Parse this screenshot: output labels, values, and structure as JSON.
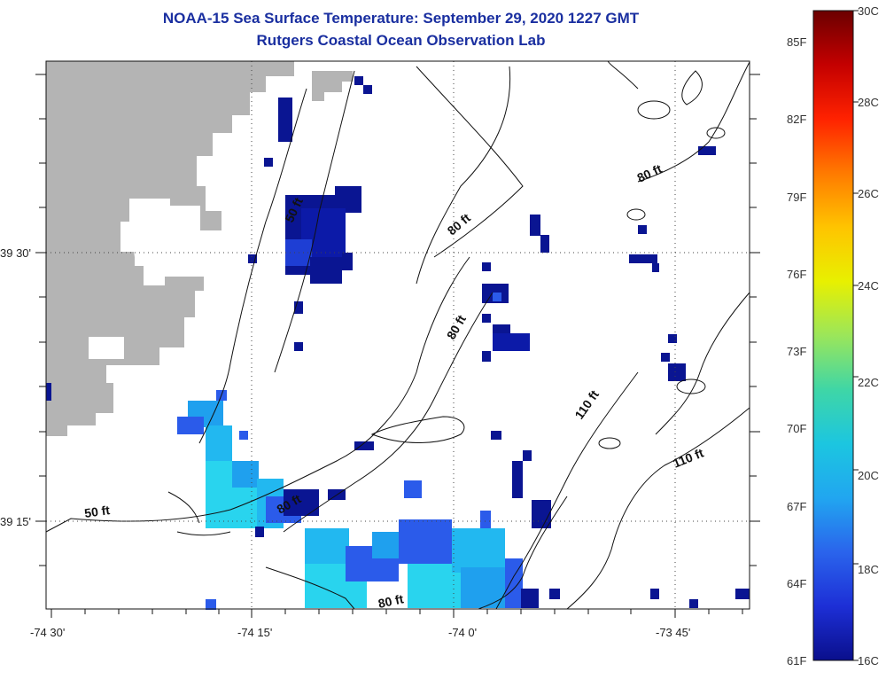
{
  "title": "NOAA-15 Sea Surface Temperature:  September 29, 2020 1227 GMT",
  "subtitle": "Rutgers Coastal Ocean Observation Lab",
  "axes": {
    "lon_labels": [
      "-74 30'",
      "-74 15'",
      "-74 0'",
      "-73 45'"
    ],
    "lat_labels": [
      "39 30'",
      "39 15'"
    ]
  },
  "contours": {
    "labels": [
      "50 ft",
      "50 ft",
      "80 ft",
      "80 ft",
      "80 ft",
      "80 ft",
      "80 ft",
      "110 ft",
      "110 ft"
    ]
  },
  "colorbar": {
    "fahrenheit": [
      "85F",
      "82F",
      "79F",
      "76F",
      "73F",
      "70F",
      "67F",
      "64F",
      "61F"
    ],
    "celsius": [
      "30C",
      "28C",
      "26C",
      "24C",
      "22C",
      "20C",
      "18C",
      "16C"
    ],
    "colors": [
      "#6b0000",
      "#c40000",
      "#ff2200",
      "#ff7a00",
      "#ffc400",
      "#e8f000",
      "#9be65a",
      "#3fd6a6",
      "#1cc6e0",
      "#21a6f0",
      "#2a64ec",
      "#1d2fd6",
      "#0a0f8c"
    ]
  },
  "colors": {
    "land": "#b4b4b4",
    "sst_cold": "#0a1592",
    "sst_cool": "#2b5bea",
    "sst_mid": "#22a8f0",
    "sst_warm": "#29d4ee",
    "title": "#1a2fa0"
  }
}
